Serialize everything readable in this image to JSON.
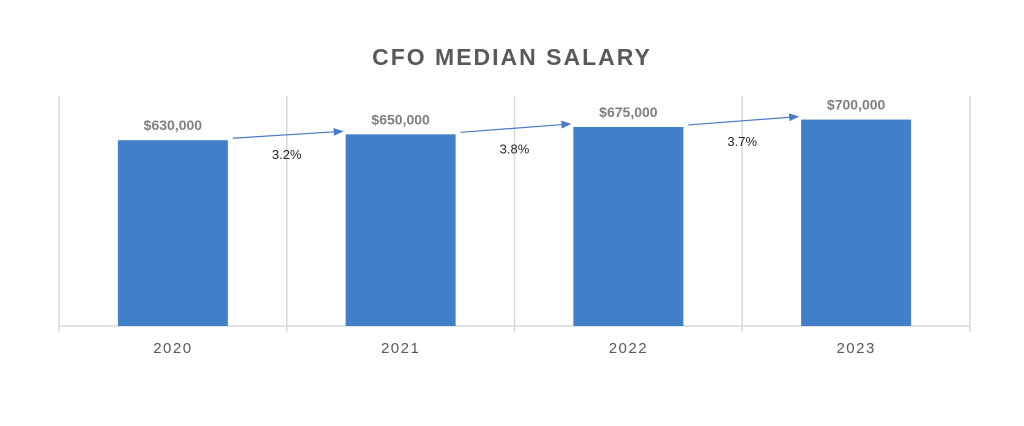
{
  "chart_data": {
    "type": "bar",
    "title": "CFO MEDIAN SALARY",
    "xlabel": "",
    "ylabel": "",
    "categories": [
      "2020",
      "2021",
      "2022",
      "2023"
    ],
    "values": [
      630000,
      650000,
      675000,
      700000
    ],
    "data_labels": [
      "$630,000",
      "$650,000",
      "$675,000",
      "$700,000"
    ],
    "annotations": [
      {
        "from": "2020",
        "to": "2021",
        "text": "3.2%"
      },
      {
        "from": "2021",
        "to": "2022",
        "text": "3.8%"
      },
      {
        "from": "2022",
        "to": "2023",
        "text": "3.7%"
      }
    ],
    "ylim": [
      0,
      780000
    ],
    "grid": "vertical",
    "legend": "none",
    "bar_color": "#4180c8",
    "arrow_color": "#4a7cc4",
    "axis_color": "#d9d9d9"
  }
}
